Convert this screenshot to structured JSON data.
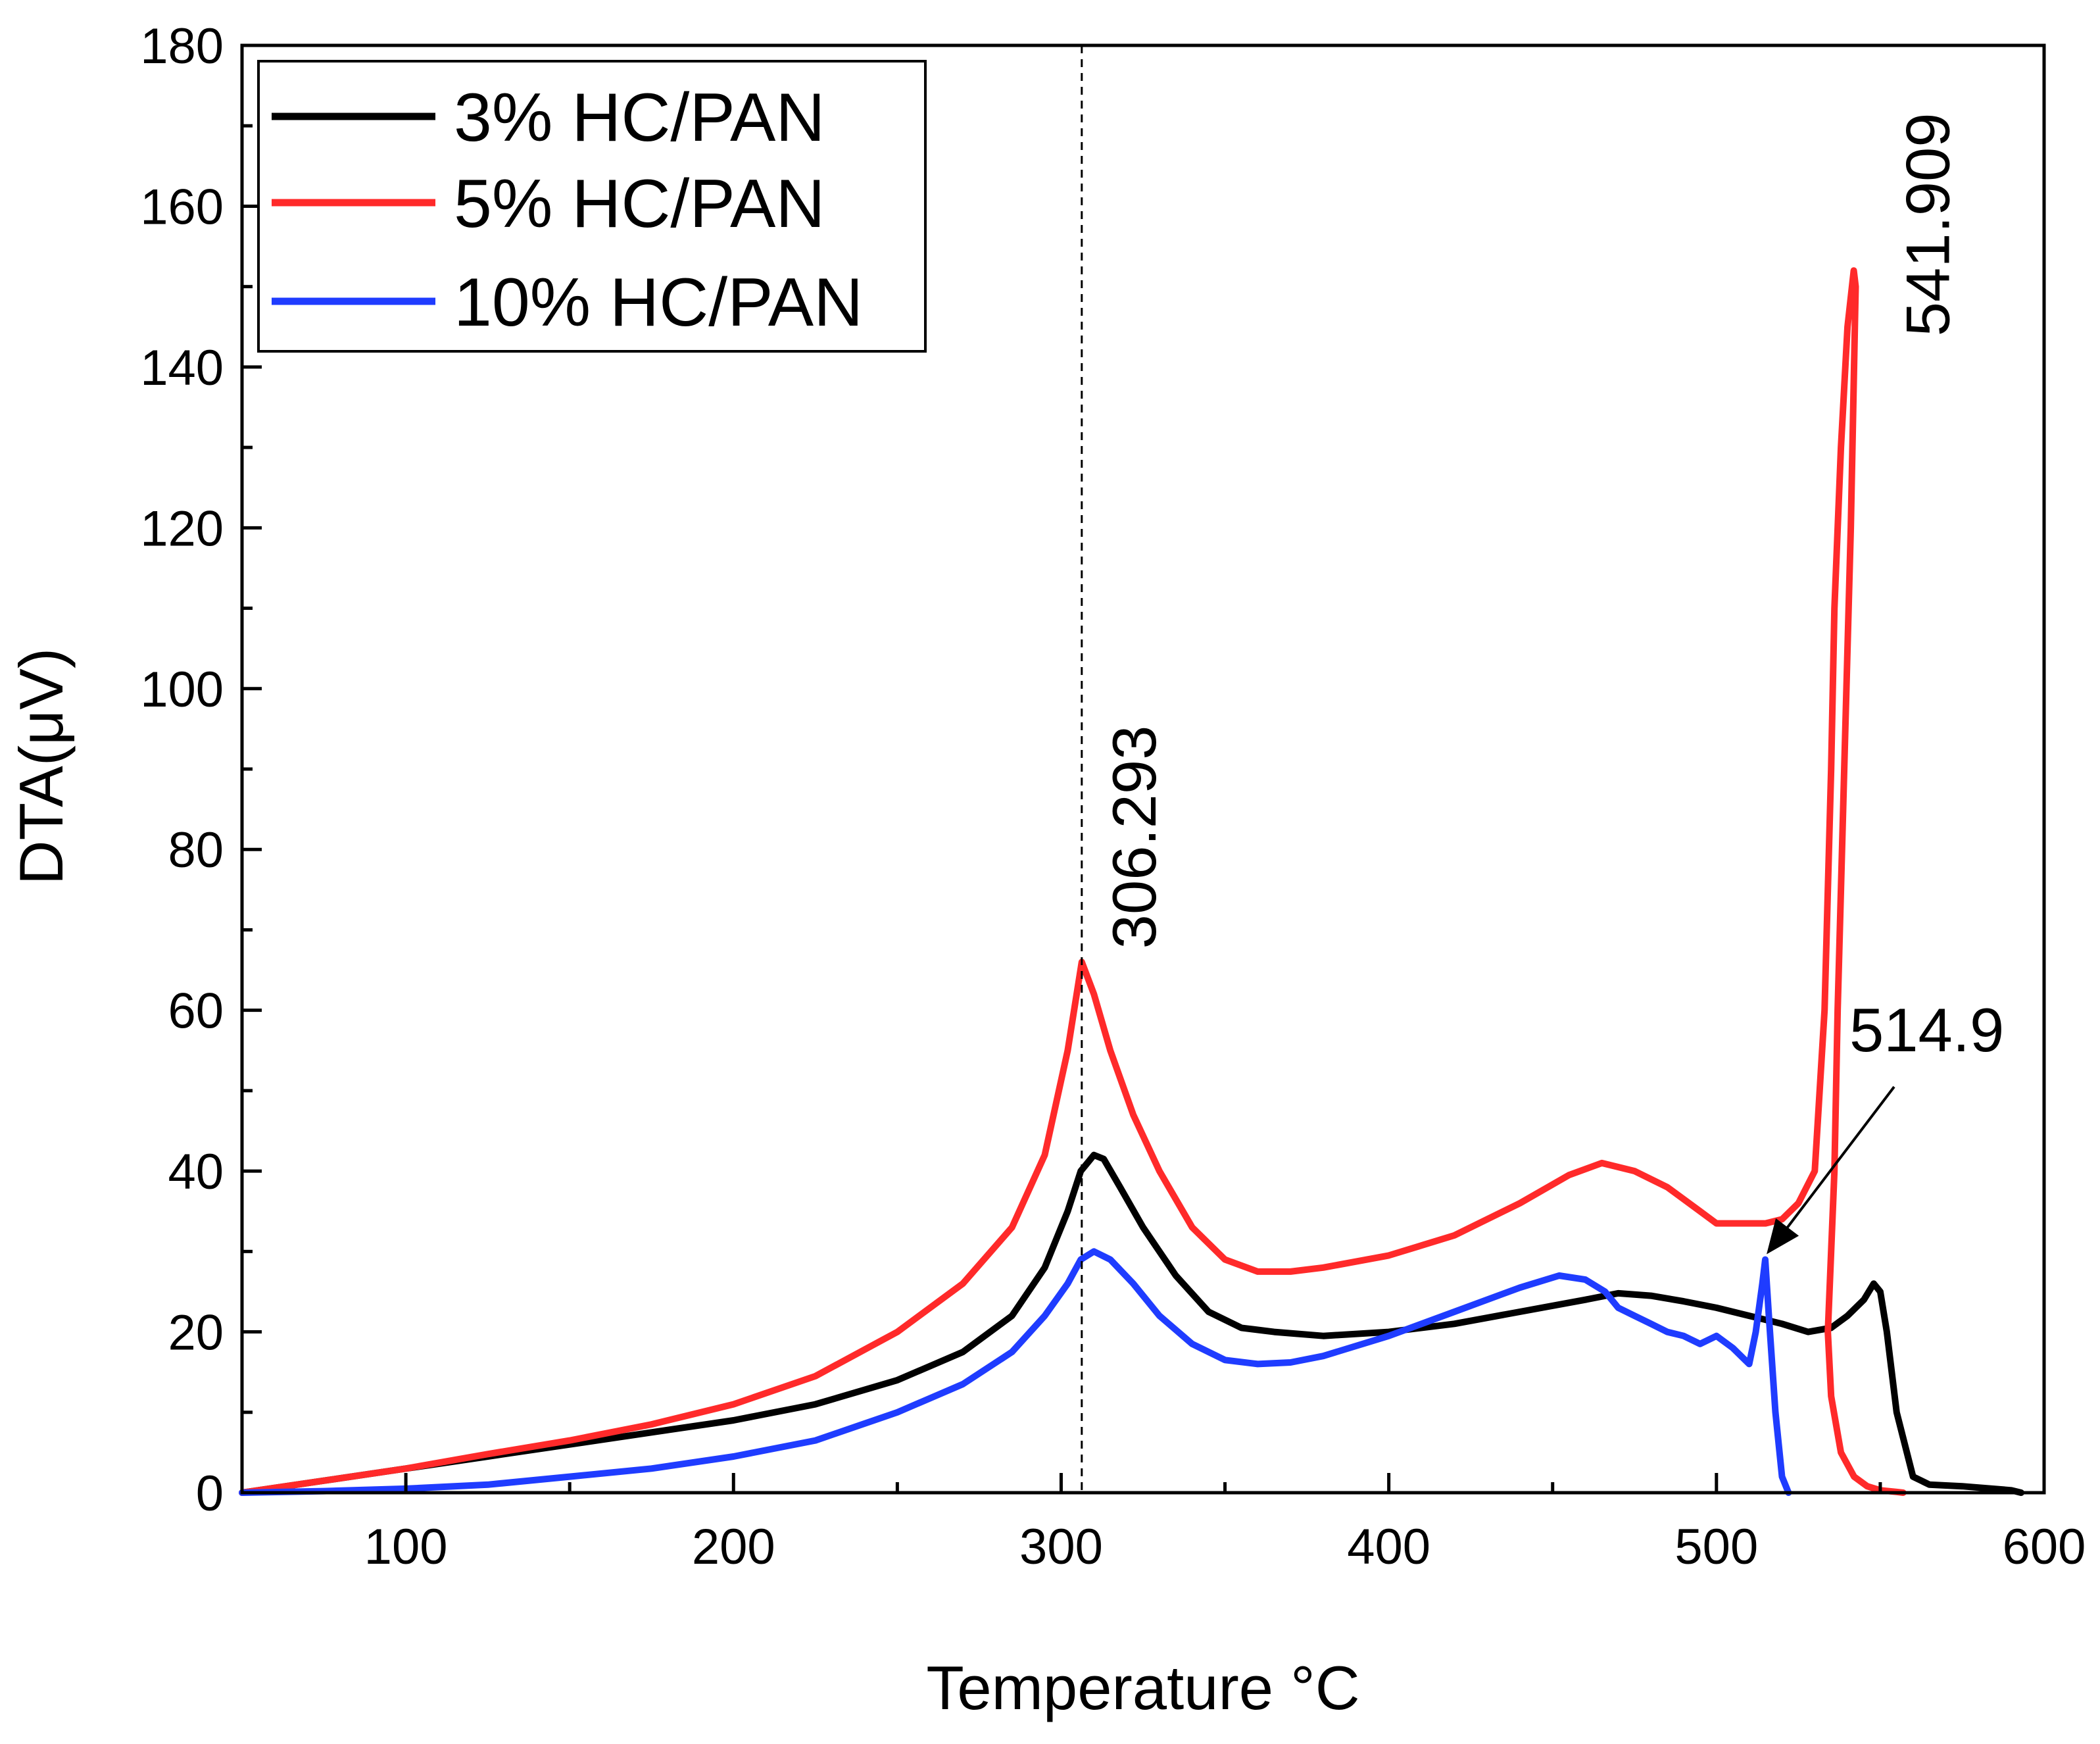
{
  "chart_data": {
    "type": "line",
    "title": "",
    "xlabel": "Temperature °C",
    "ylabel": "DTA(μV)",
    "xlim": [
      50,
      600
    ],
    "ylim": [
      0,
      180
    ],
    "xticks": [
      100,
      200,
      300,
      400,
      500,
      600
    ],
    "yticks": [
      0,
      20,
      40,
      60,
      80,
      100,
      120,
      140,
      160,
      180
    ],
    "grid": false,
    "legend_position": "top-left",
    "series": [
      {
        "name": "3% HC/PAN",
        "color": "#000000",
        "x": [
          50,
          75,
          100,
          125,
          150,
          175,
          200,
          225,
          250,
          270,
          285,
          295,
          302,
          306,
          310,
          313,
          318,
          325,
          335,
          345,
          355,
          365,
          380,
          400,
          420,
          440,
          460,
          470,
          480,
          490,
          500,
          510,
          520,
          528,
          535,
          540,
          545,
          548,
          550,
          552,
          555,
          560,
          565,
          575,
          590,
          593
        ],
        "y": [
          0,
          1.5,
          3,
          4.5,
          6,
          7.5,
          9,
          11,
          14,
          17.5,
          22,
          28,
          35,
          40,
          42,
          41.5,
          38,
          33,
          27,
          22.5,
          20.5,
          20,
          19.5,
          20,
          21,
          22.5,
          24,
          24.8,
          24.5,
          23.8,
          23,
          22,
          21,
          20,
          20.5,
          22,
          24,
          26,
          25,
          20,
          10,
          2,
          1,
          0.8,
          0.3,
          0
        ]
      },
      {
        "name": "5% HC/PAN",
        "color": "#ff2a2a",
        "x": [
          50,
          75,
          100,
          125,
          150,
          175,
          200,
          225,
          250,
          270,
          285,
          295,
          302,
          306.3,
          310,
          315,
          322,
          330,
          340,
          350,
          360,
          370,
          380,
          400,
          420,
          440,
          455,
          465,
          475,
          485,
          495,
          500,
          505,
          515,
          520,
          525,
          530,
          533,
          535,
          536,
          538,
          540,
          541.9,
          542.5,
          541,
          539,
          537,
          536,
          535,
          534,
          535,
          538,
          542,
          546,
          550,
          555,
          557
        ],
        "y": [
          0,
          1.5,
          3,
          4.8,
          6.5,
          8.5,
          11,
          14.5,
          20,
          26,
          33,
          42,
          55,
          66,
          62,
          55,
          47,
          40,
          33,
          29,
          27.5,
          27.5,
          28,
          29.5,
          32,
          36,
          39.5,
          41,
          40,
          38,
          35,
          33.5,
          33.5,
          33.5,
          34,
          36,
          40,
          60,
          90,
          110,
          130,
          145,
          152,
          150,
          120,
          90,
          60,
          40,
          30,
          20,
          12,
          5,
          2,
          0.8,
          0.3,
          0.1,
          0
        ]
      },
      {
        "name": "10% HC/PAN",
        "color": "#1f3cff",
        "x": [
          50,
          75,
          100,
          125,
          150,
          175,
          200,
          225,
          250,
          270,
          285,
          295,
          302,
          306,
          310,
          315,
          322,
          330,
          340,
          350,
          360,
          370,
          380,
          400,
          420,
          440,
          452,
          460,
          466,
          470,
          475,
          480,
          485,
          490,
          495,
          500,
          505,
          510,
          512,
          514,
          514.9,
          516,
          518,
          520,
          522
        ],
        "y": [
          0,
          0.2,
          0.5,
          1,
          2,
          3,
          4.5,
          6.5,
          10,
          13.5,
          17.5,
          22,
          26,
          29,
          30,
          29,
          26,
          22,
          18.5,
          16.5,
          16,
          16.2,
          17,
          19.5,
          22.5,
          25.5,
          27,
          26.5,
          25,
          23,
          22,
          21,
          20,
          19.5,
          18.5,
          19.5,
          18,
          16,
          20,
          26,
          29,
          22,
          10,
          2,
          0
        ]
      }
    ],
    "annotations": [
      {
        "text": "306.293",
        "x": 306.293,
        "y": 66,
        "orientation": "vertical",
        "guide_line": "dashed"
      },
      {
        "text": "541.909",
        "x": 541.909,
        "y": 152,
        "orientation": "vertical"
      },
      {
        "text": "514.9",
        "x": 514.9,
        "y": 29,
        "orientation": "horizontal",
        "arrow": true
      }
    ]
  }
}
